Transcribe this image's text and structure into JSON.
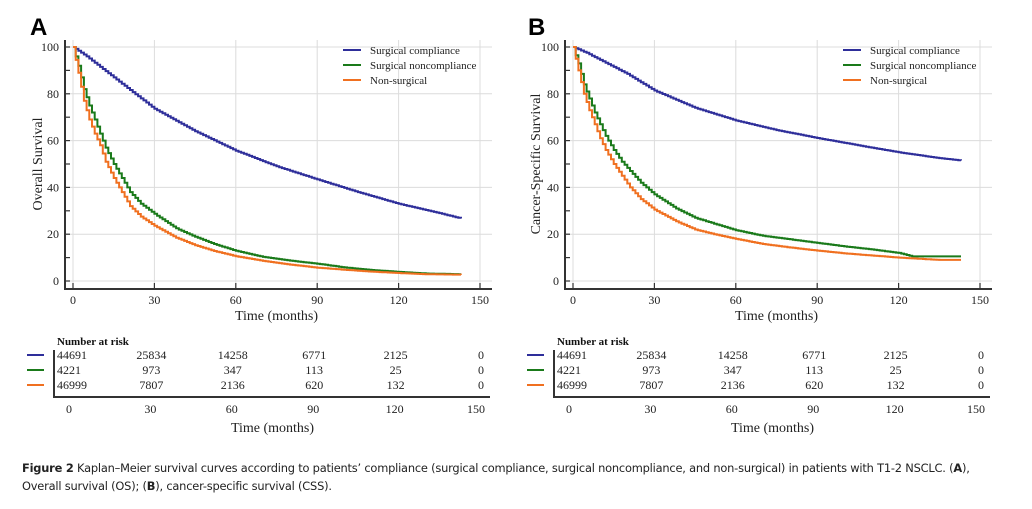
{
  "caption": {
    "figure_label": "Figure 2",
    "text_1": " Kaplan–Meier survival curves according to patients’ compliance (surgical compliance, surgical noncompliance, and non-surgical) in patients with T1-2 NSCLC. (",
    "ref_a": "A",
    "text_2": "), Overall survival (OS); (",
    "ref_b": "B",
    "text_3": "), cancer-specific survival (CSS)."
  },
  "colors": {
    "surgical_compliance": "#2e2e9a",
    "surgical_noncompliance": "#1a7a1a",
    "non_surgical": "#f07020",
    "grid": "#dcdcdc",
    "axis": "#333333"
  },
  "chart_data": [
    {
      "panel": "A",
      "type": "line",
      "step": true,
      "title": "",
      "xlabel": "Time (months)",
      "ylabel": "Overall Survival",
      "xlim": [
        0,
        150
      ],
      "ylim": [
        0,
        100
      ],
      "xticks": [
        0,
        30,
        60,
        90,
        120,
        150
      ],
      "yticks": [
        0,
        20,
        40,
        60,
        80,
        100
      ],
      "grid": true,
      "legend_position": "top-right",
      "series": [
        {
          "name": "Surgical compliance",
          "color_key": "surgical_compliance",
          "x": [
            0,
            5,
            10,
            15,
            20,
            30,
            45,
            60,
            75,
            90,
            105,
            120,
            135,
            143
          ],
          "y": [
            100,
            96,
            91.5,
            87,
            82.5,
            73.6,
            64,
            55.7,
            49,
            43.4,
            38,
            33,
            29,
            26.7
          ]
        },
        {
          "name": "Surgical noncompliance",
          "color_key": "surgical_noncompliance",
          "x": [
            0,
            2,
            4,
            6,
            8,
            10,
            12,
            15,
            18,
            21,
            25,
            30,
            38,
            45,
            52,
            60,
            70,
            80,
            90,
            100,
            110,
            120,
            130,
            143
          ],
          "y": [
            100,
            92,
            82,
            75,
            69,
            63,
            57,
            50,
            44,
            38,
            33,
            28.7,
            22.5,
            18.9,
            15.8,
            12.9,
            10.3,
            8.7,
            7.4,
            5.8,
            4.7,
            3.9,
            3.2,
            2.9
          ]
        },
        {
          "name": "Non-surgical",
          "color_key": "non_surgical",
          "x": [
            0,
            2,
            4,
            6,
            8,
            10,
            12,
            15,
            18,
            21,
            25,
            30,
            38,
            45,
            52,
            60,
            70,
            80,
            90,
            100,
            110,
            120,
            130,
            143
          ],
          "y": [
            100,
            89,
            77,
            69,
            63,
            58,
            51,
            44,
            38,
            32,
            27.5,
            23.6,
            18.5,
            15.3,
            12.8,
            10.6,
            8.6,
            7,
            5.7,
            4.8,
            4,
            3.4,
            2.9,
            2.7
          ]
        }
      ],
      "number_at_risk": {
        "title": "Number at risk",
        "times": [
          0,
          30,
          60,
          90,
          120,
          150
        ],
        "rows": [
          {
            "series": "Surgical compliance",
            "values": [
              44691,
              25834,
              14258,
              6771,
              2125,
              0
            ]
          },
          {
            "series": "Surgical noncompliance",
            "values": [
              4221,
              973,
              347,
              113,
              25,
              0
            ]
          },
          {
            "series": "Non-surgical",
            "values": [
              46999,
              7807,
              2136,
              620,
              132,
              0
            ]
          }
        ],
        "xlabel": "Time (months)"
      }
    },
    {
      "panel": "B",
      "type": "line",
      "step": true,
      "title": "",
      "xlabel": "Time (months)",
      "ylabel": "Cancer-Specific Survival",
      "xlim": [
        0,
        150
      ],
      "ylim": [
        0,
        100
      ],
      "xticks": [
        0,
        30,
        60,
        90,
        120,
        150
      ],
      "yticks": [
        0,
        20,
        40,
        60,
        80,
        100
      ],
      "grid": true,
      "legend_position": "top-right",
      "series": [
        {
          "name": "Surgical compliance",
          "color_key": "surgical_compliance",
          "x": [
            0,
            5,
            10,
            15,
            20,
            30,
            45,
            60,
            75,
            90,
            105,
            120,
            135,
            143
          ],
          "y": [
            100,
            97.5,
            94.5,
            91.5,
            88.5,
            81.4,
            74,
            68.6,
            64.5,
            61.1,
            58,
            55,
            52.5,
            51.5
          ]
        },
        {
          "name": "Surgical noncompliance",
          "color_key": "surgical_noncompliance",
          "x": [
            0,
            2,
            4,
            6,
            8,
            10,
            12,
            15,
            18,
            21,
            25,
            30,
            38,
            45,
            52,
            60,
            70,
            80,
            90,
            100,
            110,
            120,
            125,
            143
          ],
          "y": [
            100,
            93,
            84,
            78,
            72,
            67,
            62,
            56,
            51,
            47,
            42,
            37,
            31,
            27,
            24.5,
            21.7,
            19.3,
            17.8,
            16.3,
            14.8,
            13.5,
            12,
            10.5,
            10.5
          ]
        },
        {
          "name": "Non-surgical",
          "color_key": "non_surgical",
          "x": [
            0,
            2,
            4,
            6,
            8,
            10,
            12,
            15,
            18,
            21,
            25,
            30,
            38,
            45,
            52,
            60,
            70,
            80,
            90,
            100,
            110,
            120,
            135,
            143
          ],
          "y": [
            100,
            90,
            80,
            73,
            67,
            61,
            56,
            50,
            45,
            40,
            35,
            30.5,
            25.5,
            22,
            20,
            18,
            15.8,
            14.3,
            13,
            11.8,
            10.9,
            10,
            9,
            9
          ]
        }
      ],
      "number_at_risk": {
        "title": "Number at risk",
        "times": [
          0,
          30,
          60,
          90,
          120,
          150
        ],
        "rows": [
          {
            "series": "Surgical compliance",
            "values": [
              44691,
              25834,
              14258,
              6771,
              2125,
              0
            ]
          },
          {
            "series": "Surgical noncompliance",
            "values": [
              4221,
              973,
              347,
              113,
              25,
              0
            ]
          },
          {
            "series": "Non-surgical",
            "values": [
              46999,
              7807,
              2136,
              620,
              132,
              0
            ]
          }
        ],
        "xlabel": "Time (months)"
      }
    }
  ]
}
